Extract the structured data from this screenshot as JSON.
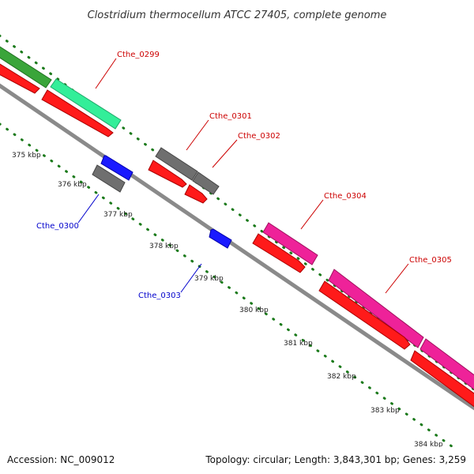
{
  "title": "Clostridium thermocellum ATCC 27405, complete genome",
  "footer": {
    "accession": "Accession: NC_009012",
    "summary": "Topology: circular; Length: 3,843,301 bp; Genes: 3,259"
  },
  "colors": {
    "forward_cds": "#ff1a1a",
    "reverse_cds": "#1a1aff",
    "grey_feature": "#6f6f6f",
    "green_feature": "#3aa53a",
    "mint_feature": "#33ee99",
    "magenta_feature": "#ee2299",
    "ticks": "#1b7a1b",
    "backbone": "#8a8a8a",
    "forward_label": "#cc0000",
    "reverse_label": "#0000cc"
  },
  "ruler": {
    "unit": "kbp",
    "labels": [
      "375 kbp",
      "376 kbp",
      "377 kbp",
      "378 kbp",
      "379 kbp",
      "380 kbp",
      "381 kbp",
      "382 kbp",
      "383 kbp",
      "384 kbp"
    ]
  },
  "genes": {
    "forward": [
      "Cthe_0299",
      "Cthe_0301",
      "Cthe_0302",
      "Cthe_0304",
      "Cthe_0305"
    ],
    "reverse": [
      "Cthe_0300",
      "Cthe_0303"
    ]
  }
}
